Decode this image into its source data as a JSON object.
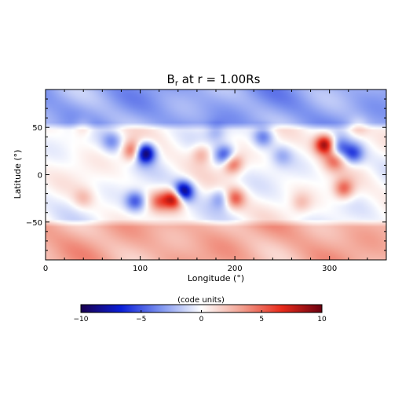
{
  "chart_data": {
    "type": "heatmap",
    "title_main": "B",
    "title_sub": "r",
    "title_rest": " at r = 1.00Rs",
    "xlabel": "Longitude (°)",
    "ylabel": "Latitude (°)",
    "xlim": [
      0,
      360
    ],
    "ylim": [
      -90,
      90
    ],
    "xticks": [
      0,
      100,
      200,
      300
    ],
    "yticks": [
      -50,
      0,
      50
    ],
    "xtick_labels": [
      "0",
      "100",
      "200",
      "300"
    ],
    "ytick_labels": [
      "−50",
      "0",
      "50"
    ],
    "colormap": [
      "#1a0050",
      "#0a1ed8",
      "#7f95f0",
      "#ffffff",
      "#f2a090",
      "#e82a1a",
      "#6a0010"
    ],
    "colorbar": {
      "label": "(code units)",
      "range": [
        -10,
        10
      ],
      "ticks": [
        -10,
        -5,
        0,
        5,
        10
      ],
      "tick_labels": [
        "−10",
        "−5",
        "0",
        "5",
        "10"
      ]
    },
    "background_field": [
      {
        "lat_min": 55,
        "lat_max": 90,
        "value": -2.8
      },
      {
        "lat_min": -90,
        "lat_max": -55,
        "value": 2.8
      }
    ],
    "sources": [
      {
        "lon": 105,
        "lat": 23,
        "value": -10
      },
      {
        "lon": 92,
        "lat": 25,
        "value": 6
      },
      {
        "lon": 145,
        "lat": -18,
        "value": -10
      },
      {
        "lon": 136,
        "lat": -25,
        "value": 9
      },
      {
        "lon": 120,
        "lat": -28,
        "value": 4
      },
      {
        "lon": 190,
        "lat": 20,
        "value": -6
      },
      {
        "lon": 197,
        "lat": 12,
        "value": 6
      },
      {
        "lon": 165,
        "lat": 22,
        "value": 3
      },
      {
        "lon": 295,
        "lat": 32,
        "value": 9
      },
      {
        "lon": 310,
        "lat": 28,
        "value": -4
      },
      {
        "lon": 325,
        "lat": 22,
        "value": -5
      },
      {
        "lon": 305,
        "lat": 15,
        "value": 4
      },
      {
        "lon": 315,
        "lat": -15,
        "value": 5
      },
      {
        "lon": 200,
        "lat": -25,
        "value": 5
      },
      {
        "lon": 185,
        "lat": -25,
        "value": -3
      },
      {
        "lon": 95,
        "lat": -28,
        "value": -5
      },
      {
        "lon": 70,
        "lat": 35,
        "value": -3
      },
      {
        "lon": 230,
        "lat": 40,
        "value": -4
      },
      {
        "lon": 250,
        "lat": 20,
        "value": -2
      },
      {
        "lon": 40,
        "lat": 50,
        "value": 2
      },
      {
        "lon": 330,
        "lat": 50,
        "value": 2
      },
      {
        "lon": 270,
        "lat": -30,
        "value": 2
      },
      {
        "lon": 40,
        "lat": -25,
        "value": 2
      },
      {
        "lon": 180,
        "lat": 45,
        "value": -2
      }
    ]
  }
}
